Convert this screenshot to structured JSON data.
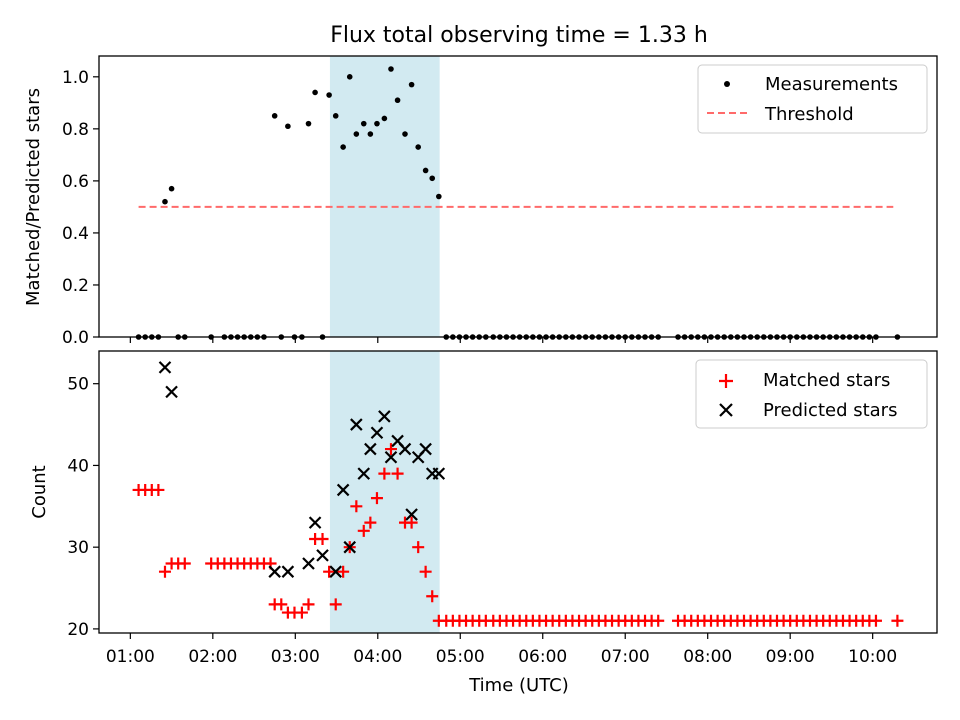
{
  "title": "Flux total observing time = 1.33 h",
  "xlabel": "Time (UTC)",
  "x_ticks": [
    "01:00",
    "02:00",
    "03:00",
    "04:00",
    "05:00",
    "06:00",
    "07:00",
    "08:00",
    "09:00",
    "10:00"
  ],
  "x_tick_hours": [
    1,
    2,
    3,
    4,
    5,
    6,
    7,
    8,
    9,
    10
  ],
  "x_range_hours": [
    0.62,
    10.78
  ],
  "highlight": {
    "start_hours": 3.42,
    "end_hours": 4.75,
    "color": "#add8e6"
  },
  "colors": {
    "measurement": "#000000",
    "threshold": "#ff6a6a",
    "matched": "#ff0000",
    "predicted": "#000000"
  },
  "chart_data": [
    {
      "type": "scatter",
      "ylabel": "Matched/Predicted stars",
      "ylim": [
        0,
        1.08
      ],
      "y_ticks": [
        "0.0",
        "0.2",
        "0.4",
        "0.6",
        "0.8",
        "1.0"
      ],
      "y_tick_values": [
        0,
        0.2,
        0.4,
        0.6,
        0.8,
        1.0
      ],
      "legend_position": "top-right",
      "legend": [
        "Measurements",
        "Threshold"
      ],
      "threshold": {
        "value": 0.5,
        "x_start": 1.1,
        "x_end": 10.25
      },
      "measurements": {
        "x": [
          1.1,
          1.18,
          1.26,
          1.34,
          1.42,
          1.5,
          1.58,
          1.66,
          1.98,
          2.14,
          2.22,
          2.3,
          2.38,
          2.46,
          2.54,
          2.62,
          2.75,
          2.83,
          2.91,
          2.99,
          3.08,
          3.16,
          3.24,
          3.33,
          3.41,
          3.49,
          3.58,
          3.66,
          3.74,
          3.83,
          3.91,
          3.99,
          4.08,
          4.16,
          4.24,
          4.33,
          4.41,
          4.49,
          4.58,
          4.66,
          4.74,
          4.83,
          4.91,
          4.99,
          5.07,
          5.15,
          5.23,
          5.31,
          5.4,
          5.48,
          5.56,
          5.64,
          5.72,
          5.8,
          5.88,
          5.96,
          6.04,
          6.12,
          6.2,
          6.28,
          6.36,
          6.44,
          6.52,
          6.6,
          6.68,
          6.76,
          6.84,
          6.92,
          7.0,
          7.08,
          7.16,
          7.24,
          7.32,
          7.4,
          7.64,
          7.72,
          7.8,
          7.88,
          7.96,
          8.04,
          8.12,
          8.2,
          8.28,
          8.36,
          8.44,
          8.52,
          8.6,
          8.68,
          8.76,
          8.84,
          8.92,
          9.0,
          9.08,
          9.16,
          9.24,
          9.32,
          9.4,
          9.48,
          9.56,
          9.64,
          9.72,
          9.8,
          9.88,
          9.96,
          10.04,
          10.3
        ],
        "y": [
          0,
          0,
          0,
          0,
          0.52,
          0.57,
          0,
          0,
          0,
          0,
          0,
          0,
          0,
          0,
          0,
          0,
          0.85,
          0,
          0.81,
          0,
          0,
          0.82,
          0.94,
          0,
          0.93,
          0.85,
          0.73,
          1.0,
          0.78,
          0.82,
          0.78,
          0.82,
          0.84,
          1.03,
          0.91,
          0.78,
          0.97,
          0.73,
          0.64,
          0.61,
          0.54,
          0,
          0,
          0,
          0,
          0,
          0,
          0,
          0,
          0,
          0,
          0,
          0,
          0,
          0,
          0,
          0,
          0,
          0,
          0,
          0,
          0,
          0,
          0,
          0,
          0,
          0,
          0,
          0,
          0,
          0,
          0,
          0,
          0,
          0,
          0,
          0,
          0,
          0,
          0,
          0,
          0,
          0,
          0,
          0,
          0,
          0,
          0,
          0,
          0,
          0,
          0,
          0,
          0,
          0,
          0,
          0,
          0,
          0,
          0,
          0,
          0,
          0,
          0,
          0,
          0
        ]
      }
    },
    {
      "type": "scatter",
      "ylabel": "Count",
      "ylim": [
        19.5,
        54
      ],
      "y_ticks": [
        "20",
        "30",
        "40",
        "50"
      ],
      "y_tick_values": [
        20,
        30,
        40,
        50
      ],
      "legend_position": "top-right",
      "legend": [
        "Matched stars",
        "Predicted stars"
      ],
      "matched": {
        "x": [
          1.1,
          1.18,
          1.26,
          1.34,
          1.42,
          1.5,
          1.58,
          1.66,
          1.98,
          2.06,
          2.14,
          2.22,
          2.3,
          2.38,
          2.46,
          2.54,
          2.62,
          2.7,
          2.75,
          2.83,
          2.91,
          2.99,
          3.08,
          3.16,
          3.24,
          3.33,
          3.41,
          3.49,
          3.58,
          3.66,
          3.74,
          3.83,
          3.91,
          3.99,
          4.08,
          4.16,
          4.24,
          4.33,
          4.41,
          4.49,
          4.58,
          4.66,
          4.74,
          4.83,
          4.91,
          4.99,
          5.07,
          5.15,
          5.23,
          5.31,
          5.4,
          5.48,
          5.56,
          5.64,
          5.72,
          5.8,
          5.88,
          5.96,
          6.04,
          6.12,
          6.2,
          6.28,
          6.36,
          6.44,
          6.52,
          6.6,
          6.68,
          6.76,
          6.84,
          6.92,
          7.0,
          7.08,
          7.16,
          7.24,
          7.32,
          7.4,
          7.64,
          7.72,
          7.8,
          7.88,
          7.96,
          8.04,
          8.12,
          8.2,
          8.28,
          8.36,
          8.44,
          8.52,
          8.6,
          8.68,
          8.76,
          8.84,
          8.92,
          9.0,
          9.08,
          9.16,
          9.24,
          9.32,
          9.4,
          9.48,
          9.56,
          9.64,
          9.72,
          9.8,
          9.88,
          9.96,
          10.04,
          10.3
        ],
        "y": [
          37,
          37,
          37,
          37,
          27,
          28,
          28,
          28,
          28,
          28,
          28,
          28,
          28,
          28,
          28,
          28,
          28,
          28,
          23,
          23,
          22,
          22,
          22,
          23,
          31,
          31,
          27,
          23,
          27,
          30,
          35,
          32,
          33,
          36,
          39,
          42,
          39,
          33,
          33,
          30,
          27,
          24,
          21,
          21,
          21,
          21,
          21,
          21,
          21,
          21,
          21,
          21,
          21,
          21,
          21,
          21,
          21,
          21,
          21,
          21,
          21,
          21,
          21,
          21,
          21,
          21,
          21,
          21,
          21,
          21,
          21,
          21,
          21,
          21,
          21,
          21,
          21,
          21,
          21,
          21,
          21,
          21,
          21,
          21,
          21,
          21,
          21,
          21,
          21,
          21,
          21,
          21,
          21,
          21,
          21,
          21,
          21,
          21,
          21,
          21,
          21,
          21,
          21,
          21,
          21,
          21,
          21,
          21
        ]
      },
      "predicted": {
        "x": [
          1.42,
          1.5,
          2.75,
          2.91,
          3.16,
          3.24,
          3.33,
          3.49,
          3.58,
          3.66,
          3.74,
          3.83,
          3.91,
          3.99,
          4.08,
          4.16,
          4.24,
          4.33,
          4.41,
          4.49,
          4.58,
          4.66,
          4.74
        ],
        "y": [
          52,
          49,
          27,
          27,
          28,
          33,
          29,
          27,
          37,
          30,
          45,
          39,
          42,
          44,
          46,
          41,
          43,
          42,
          34,
          41,
          42,
          39,
          39
        ]
      }
    }
  ]
}
